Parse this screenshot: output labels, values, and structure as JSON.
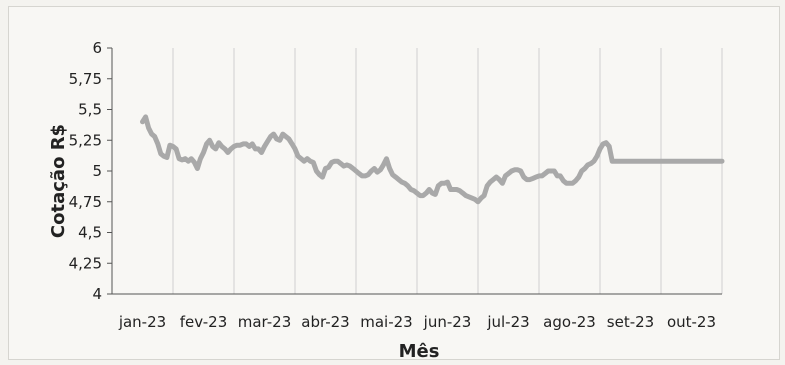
{
  "chart_data": {
    "type": "line",
    "xlabel": "Mês",
    "ylabel": "Cotação R$",
    "ylim": [
      4,
      6
    ],
    "yticks": [
      "4",
      "4,25",
      "4,5",
      "4,75",
      "5",
      "5,25",
      "5,5",
      "5,75",
      "6"
    ],
    "categories": [
      "jan-23",
      "fev-23",
      "mar-23",
      "abr-23",
      "mai-23",
      "jun-23",
      "jul-23",
      "ago-23",
      "set-23",
      "out-23"
    ],
    "grid": "vertical",
    "line_color": "#a9a9a9",
    "series": [
      {
        "x": [
          0.0,
          0.05,
          0.1,
          0.15,
          0.2,
          0.25,
          0.3,
          0.35,
          0.4,
          0.45,
          0.5,
          0.55,
          0.6,
          0.65,
          0.7,
          0.75,
          0.8,
          0.85,
          0.9,
          0.95,
          1.0,
          1.05,
          1.1,
          1.15,
          1.2,
          1.25,
          1.3,
          1.35,
          1.4,
          1.45,
          1.5,
          1.55,
          1.6,
          1.65,
          1.7,
          1.75,
          1.8,
          1.85,
          1.9,
          1.95,
          2.0,
          2.05,
          2.1,
          2.15,
          2.2,
          2.25,
          2.3,
          2.35,
          2.4,
          2.45,
          2.5,
          2.55,
          2.6,
          2.65,
          2.7,
          2.75,
          2.8,
          2.85,
          2.9,
          2.95,
          3.0,
          3.05,
          3.1,
          3.15,
          3.2,
          3.25,
          3.3,
          3.35,
          3.4,
          3.45,
          3.5,
          3.55,
          3.6,
          3.65,
          3.7,
          3.75,
          3.8,
          3.85,
          3.9,
          3.95,
          4.0,
          4.05,
          4.1,
          4.15,
          4.2,
          4.25,
          4.3,
          4.35,
          4.4,
          4.45,
          4.5,
          4.55,
          4.6,
          4.65,
          4.7,
          4.75,
          4.8,
          4.85,
          4.9,
          4.95,
          5.0,
          5.05,
          5.1,
          5.15,
          5.2,
          5.25,
          5.3,
          5.35,
          5.4,
          5.45,
          5.5,
          5.55,
          5.6,
          5.65,
          5.7,
          5.75,
          5.8,
          5.85,
          5.9,
          5.95,
          6.0,
          6.05,
          6.1,
          6.15,
          6.2,
          6.25,
          6.3,
          6.35,
          6.4,
          6.45,
          6.5,
          6.55,
          6.6,
          6.65,
          6.7,
          6.75,
          6.8,
          6.85,
          6.9,
          6.95,
          7.0,
          7.05,
          7.1,
          7.15,
          7.2,
          7.25,
          7.3,
          7.35,
          7.4,
          7.45,
          7.5,
          7.55,
          7.6,
          7.65,
          7.7,
          7.75,
          7.8,
          7.85,
          7.9,
          7.95,
          8.0,
          8.05,
          8.1,
          8.15,
          8.2,
          8.25,
          8.3,
          8.35,
          8.4,
          8.45,
          8.5,
          8.55,
          8.6,
          8.65,
          8.7,
          8.75,
          8.8,
          8.85,
          8.9,
          8.95,
          9.0,
          9.05,
          9.1,
          9.15,
          9.2,
          9.25,
          9.3,
          9.35,
          9.4,
          9.45,
          9.5
        ],
        "y": [
          5.4,
          5.44,
          5.35,
          5.3,
          5.28,
          5.22,
          5.14,
          5.12,
          5.11,
          5.21,
          5.2,
          5.18,
          5.1,
          5.09,
          5.1,
          5.08,
          5.1,
          5.07,
          5.02,
          5.1,
          5.15,
          5.22,
          5.25,
          5.2,
          5.18,
          5.23,
          5.2,
          5.18,
          5.15,
          5.18,
          5.2,
          5.21,
          5.21,
          5.22,
          5.22,
          5.2,
          5.22,
          5.18,
          5.18,
          5.15,
          5.2,
          5.24,
          5.28,
          5.3,
          5.26,
          5.25,
          5.3,
          5.28,
          5.26,
          5.22,
          5.18,
          5.12,
          5.1,
          5.08,
          5.1,
          5.08,
          5.07,
          5.0,
          4.97,
          4.95,
          5.02,
          5.03,
          5.07,
          5.08,
          5.08,
          5.06,
          5.04,
          5.05,
          5.04,
          5.02,
          5.0,
          4.98,
          4.96,
          4.96,
          4.97,
          5.0,
          5.02,
          4.99,
          5.01,
          5.05,
          5.1,
          5.02,
          4.97,
          4.95,
          4.93,
          4.91,
          4.9,
          4.88,
          4.85,
          4.84,
          4.82,
          4.8,
          4.8,
          4.82,
          4.85,
          4.82,
          4.81,
          4.88,
          4.9,
          4.9,
          4.91,
          4.85,
          4.85,
          4.85,
          4.84,
          4.82,
          4.8,
          4.79,
          4.78,
          4.77,
          4.75,
          4.78,
          4.8,
          4.88,
          4.91,
          4.93,
          4.95,
          4.93,
          4.9,
          4.96,
          4.98,
          5.0,
          5.01,
          5.01,
          5.0,
          4.95,
          4.93,
          4.93,
          4.94,
          4.95,
          4.96,
          4.96,
          4.98,
          5.0,
          5.0,
          5.0,
          4.96,
          4.96,
          4.92,
          4.9,
          4.9,
          4.9,
          4.92,
          4.95,
          5.0,
          5.02,
          5.05,
          5.06,
          5.08,
          5.12,
          5.18,
          5.22,
          5.23,
          5.2,
          5.08,
          5.08,
          5.08,
          5.08,
          5.08,
          5.08,
          5.08,
          5.08,
          5.08,
          5.08,
          5.08,
          5.08,
          5.08,
          5.08,
          5.08,
          5.08,
          5.08,
          5.08,
          5.08,
          5.08,
          5.08,
          5.08,
          5.08,
          5.08,
          5.08,
          5.08,
          5.08,
          5.08,
          5.08,
          5.08,
          5.08,
          5.08,
          5.08,
          5.08,
          5.08,
          5.08,
          5.08
        ]
      }
    ]
  }
}
